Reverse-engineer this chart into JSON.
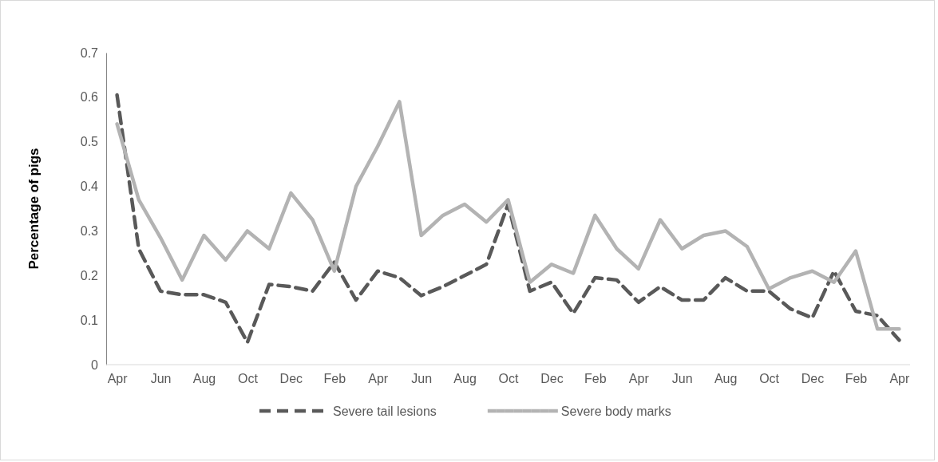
{
  "chart_data": {
    "type": "line",
    "ylabel": "Percentage of pigs",
    "categories": [
      "Apr",
      null,
      "Jun",
      null,
      "Aug",
      null,
      "Oct",
      null,
      "Dec",
      null,
      "Feb",
      null,
      "Apr",
      null,
      "Jun",
      null,
      "Aug",
      null,
      "Oct",
      null,
      "Dec",
      null,
      "Feb",
      null,
      "Apr",
      null,
      "Jun",
      null,
      "Aug",
      null,
      "Oct",
      null,
      "Dec",
      null,
      "Feb",
      null,
      "Apr"
    ],
    "series": [
      {
        "name": "Severe tail lesions",
        "color": "#595959",
        "line_style": "dashed",
        "values": [
          0.605,
          0.26,
          0.165,
          0.157,
          0.157,
          0.14,
          0.05,
          0.18,
          0.175,
          0.165,
          0.23,
          0.145,
          0.21,
          0.195,
          0.155,
          0.175,
          0.2,
          0.225,
          0.36,
          0.165,
          0.185,
          0.115,
          0.195,
          0.19,
          0.14,
          0.175,
          0.145,
          0.145,
          0.195,
          0.165,
          0.165,
          0.125,
          0.105,
          0.21,
          0.12,
          0.11,
          0.055
        ]
      },
      {
        "name": "Severe body marks",
        "color": "#b3b3b3",
        "line_style": "solid",
        "values": [
          0.54,
          0.37,
          0.285,
          0.19,
          0.29,
          0.235,
          0.3,
          0.26,
          0.385,
          0.325,
          0.21,
          0.4,
          0.49,
          0.59,
          0.29,
          0.335,
          0.36,
          0.32,
          0.37,
          0.185,
          0.225,
          0.205,
          0.335,
          0.26,
          0.215,
          0.325,
          0.26,
          0.29,
          0.3,
          0.265,
          0.17,
          0.195,
          0.21,
          0.185,
          0.255,
          0.08,
          0.08
        ]
      }
    ],
    "ylim": [
      0,
      0.7
    ],
    "yticks": [
      0,
      0.1,
      0.2,
      0.3,
      0.4,
      0.5,
      0.6,
      0.7
    ],
    "grid": false,
    "legend": "bottom"
  }
}
